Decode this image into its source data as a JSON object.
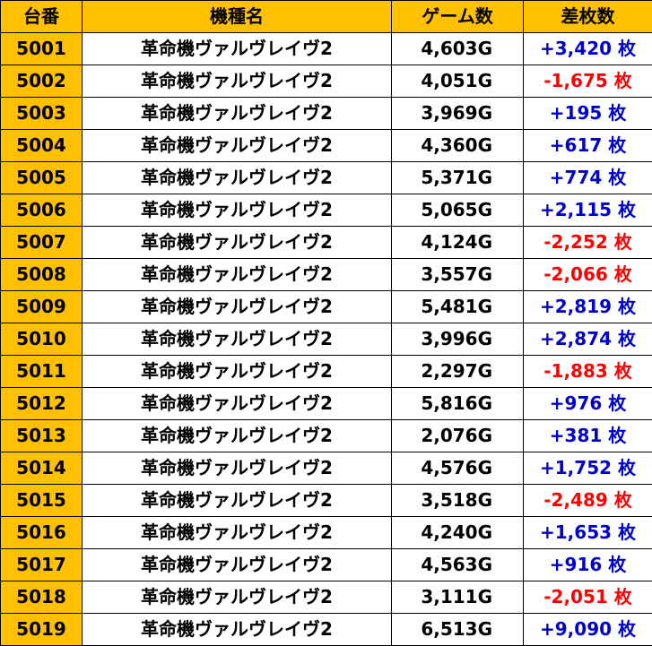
{
  "colors": {
    "header_bg": "#FFC000",
    "id_bg": "#FFC000",
    "positive": "#0000CC",
    "negative": "#FF0000"
  },
  "headers": {
    "id": "台番",
    "name": "機種名",
    "games": "ゲーム数",
    "diff": "差枚数"
  },
  "rows": [
    {
      "id": "5001",
      "name": "革命機ヴァルヴレイヴ2",
      "games": "4,603G",
      "diff": "+3,420 枚",
      "sign": "pos"
    },
    {
      "id": "5002",
      "name": "革命機ヴァルヴレイヴ2",
      "games": "4,051G",
      "diff": "-1,675 枚",
      "sign": "neg"
    },
    {
      "id": "5003",
      "name": "革命機ヴァルヴレイヴ2",
      "games": "3,969G",
      "diff": "+195 枚",
      "sign": "pos"
    },
    {
      "id": "5004",
      "name": "革命機ヴァルヴレイヴ2",
      "games": "4,360G",
      "diff": "+617 枚",
      "sign": "pos"
    },
    {
      "id": "5005",
      "name": "革命機ヴァルヴレイヴ2",
      "games": "5,371G",
      "diff": "+774 枚",
      "sign": "pos"
    },
    {
      "id": "5006",
      "name": "革命機ヴァルヴレイヴ2",
      "games": "5,065G",
      "diff": "+2,115 枚",
      "sign": "pos"
    },
    {
      "id": "5007",
      "name": "革命機ヴァルヴレイヴ2",
      "games": "4,124G",
      "diff": "-2,252 枚",
      "sign": "neg"
    },
    {
      "id": "5008",
      "name": "革命機ヴァルヴレイヴ2",
      "games": "3,557G",
      "diff": "-2,066 枚",
      "sign": "neg"
    },
    {
      "id": "5009",
      "name": "革命機ヴァルヴレイヴ2",
      "games": "5,481G",
      "diff": "+2,819 枚",
      "sign": "pos"
    },
    {
      "id": "5010",
      "name": "革命機ヴァルヴレイヴ2",
      "games": "3,996G",
      "diff": "+2,874 枚",
      "sign": "pos"
    },
    {
      "id": "5011",
      "name": "革命機ヴァルヴレイヴ2",
      "games": "2,297G",
      "diff": "-1,883 枚",
      "sign": "neg"
    },
    {
      "id": "5012",
      "name": "革命機ヴァルヴレイヴ2",
      "games": "5,816G",
      "diff": "+976 枚",
      "sign": "pos"
    },
    {
      "id": "5013",
      "name": "革命機ヴァルヴレイヴ2",
      "games": "2,076G",
      "diff": "+381 枚",
      "sign": "pos"
    },
    {
      "id": "5014",
      "name": "革命機ヴァルヴレイヴ2",
      "games": "4,576G",
      "diff": "+1,752 枚",
      "sign": "pos"
    },
    {
      "id": "5015",
      "name": "革命機ヴァルヴレイヴ2",
      "games": "3,518G",
      "diff": "-2,489 枚",
      "sign": "neg"
    },
    {
      "id": "5016",
      "name": "革命機ヴァルヴレイヴ2",
      "games": "4,240G",
      "diff": "+1,653 枚",
      "sign": "pos"
    },
    {
      "id": "5017",
      "name": "革命機ヴァルヴレイヴ2",
      "games": "4,563G",
      "diff": "+916 枚",
      "sign": "pos"
    },
    {
      "id": "5018",
      "name": "革命機ヴァルヴレイヴ2",
      "games": "3,111G",
      "diff": "-2,051 枚",
      "sign": "neg"
    },
    {
      "id": "5019",
      "name": "革命機ヴァルヴレイヴ2",
      "games": "6,513G",
      "diff": "+9,090 枚",
      "sign": "pos"
    }
  ]
}
